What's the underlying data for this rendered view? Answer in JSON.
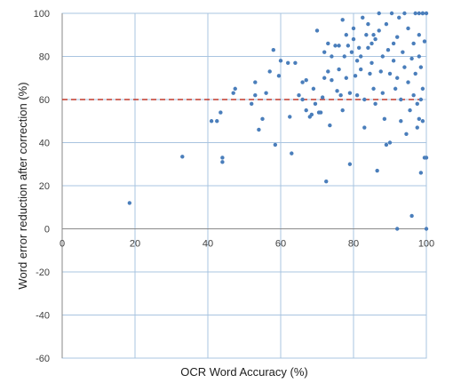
{
  "chart_data": {
    "type": "scatter",
    "title": "",
    "xlabel": "OCR Word Accuracy (%)",
    "ylabel": "Word error reduction after correction (%)",
    "xlim": [
      0,
      100
    ],
    "ylim": [
      -60,
      100
    ],
    "x_ticks": [
      0,
      20,
      40,
      60,
      80,
      100
    ],
    "y_ticks": [
      -60,
      -40,
      -20,
      0,
      20,
      40,
      60,
      80,
      100
    ],
    "grid": true,
    "legend": "none",
    "reference_line": {
      "y": 60,
      "color": "#c0392b",
      "style": "dashed"
    },
    "point_color": "#4a7ebb",
    "points": [
      [
        18.5,
        12
      ],
      [
        33,
        33.5
      ],
      [
        41,
        50
      ],
      [
        42.5,
        50
      ],
      [
        43.5,
        54
      ],
      [
        44,
        31
      ],
      [
        44,
        33
      ],
      [
        47,
        63
      ],
      [
        47.5,
        65
      ],
      [
        52,
        58
      ],
      [
        53,
        62
      ],
      [
        53,
        68
      ],
      [
        54,
        46
      ],
      [
        55,
        51
      ],
      [
        56,
        63
      ],
      [
        57,
        73
      ],
      [
        58,
        83
      ],
      [
        58.5,
        39
      ],
      [
        59.5,
        71
      ],
      [
        60,
        78
      ],
      [
        62,
        77
      ],
      [
        62.5,
        52
      ],
      [
        63,
        35
      ],
      [
        64,
        77
      ],
      [
        65,
        62
      ],
      [
        66,
        68
      ],
      [
        66,
        60
      ],
      [
        67,
        55
      ],
      [
        67,
        69
      ],
      [
        68,
        52
      ],
      [
        68.5,
        53
      ],
      [
        69,
        65
      ],
      [
        69.5,
        58
      ],
      [
        70,
        92
      ],
      [
        70.5,
        54
      ],
      [
        71,
        54
      ],
      [
        71.5,
        61
      ],
      [
        72,
        82
      ],
      [
        72,
        70
      ],
      [
        72.5,
        22
      ],
      [
        73,
        73
      ],
      [
        73,
        86
      ],
      [
        73.5,
        48
      ],
      [
        74,
        69
      ],
      [
        74,
        80
      ],
      [
        75,
        85
      ],
      [
        75.5,
        64
      ],
      [
        76,
        85
      ],
      [
        76,
        74
      ],
      [
        76.5,
        62
      ],
      [
        77,
        55
      ],
      [
        77,
        97
      ],
      [
        77.5,
        80
      ],
      [
        78,
        90
      ],
      [
        78,
        70
      ],
      [
        78.5,
        85
      ],
      [
        79,
        63
      ],
      [
        79,
        30
      ],
      [
        79.5,
        82
      ],
      [
        80,
        93
      ],
      [
        80,
        88
      ],
      [
        80.5,
        71
      ],
      [
        81,
        78
      ],
      [
        81,
        62
      ],
      [
        81.5,
        84
      ],
      [
        82,
        80
      ],
      [
        82,
        74
      ],
      [
        82.5,
        98
      ],
      [
        83,
        60
      ],
      [
        83,
        47
      ],
      [
        83.5,
        90
      ],
      [
        84,
        95
      ],
      [
        84,
        84
      ],
      [
        84.5,
        72
      ],
      [
        85,
        86
      ],
      [
        85,
        77
      ],
      [
        85.5,
        90
      ],
      [
        85.5,
        65
      ],
      [
        86,
        88
      ],
      [
        86,
        58
      ],
      [
        86.5,
        27
      ],
      [
        87,
        100
      ],
      [
        87,
        92
      ],
      [
        87.5,
        73
      ],
      [
        88,
        63
      ],
      [
        88,
        80
      ],
      [
        88.5,
        51
      ],
      [
        89,
        95
      ],
      [
        89,
        39
      ],
      [
        89.5,
        83
      ],
      [
        90,
        72
      ],
      [
        90,
        40
      ],
      [
        90.5,
        100
      ],
      [
        91,
        86
      ],
      [
        91,
        78
      ],
      [
        91.5,
        65
      ],
      [
        92,
        89
      ],
      [
        92,
        70
      ],
      [
        92,
        0
      ],
      [
        92.5,
        98
      ],
      [
        93,
        60
      ],
      [
        93,
        50
      ],
      [
        93.5,
        82
      ],
      [
        94,
        100
      ],
      [
        94,
        75
      ],
      [
        94.5,
        44
      ],
      [
        95,
        93
      ],
      [
        95,
        68
      ],
      [
        95.5,
        55
      ],
      [
        96,
        79
      ],
      [
        96,
        6
      ],
      [
        96.5,
        86
      ],
      [
        96.5,
        62
      ],
      [
        97,
        100
      ],
      [
        97,
        72
      ],
      [
        97.5,
        58
      ],
      [
        97.5,
        47
      ],
      [
        98,
        90
      ],
      [
        98,
        100
      ],
      [
        98,
        80
      ],
      [
        98,
        51
      ],
      [
        98.5,
        60
      ],
      [
        98.5,
        75
      ],
      [
        98.5,
        26
      ],
      [
        99,
        100
      ],
      [
        99,
        65
      ],
      [
        99,
        50
      ],
      [
        99.5,
        87
      ],
      [
        99.5,
        33
      ],
      [
        100,
        33
      ],
      [
        100,
        0
      ],
      [
        99,
        100
      ],
      [
        100,
        100
      ]
    ]
  }
}
